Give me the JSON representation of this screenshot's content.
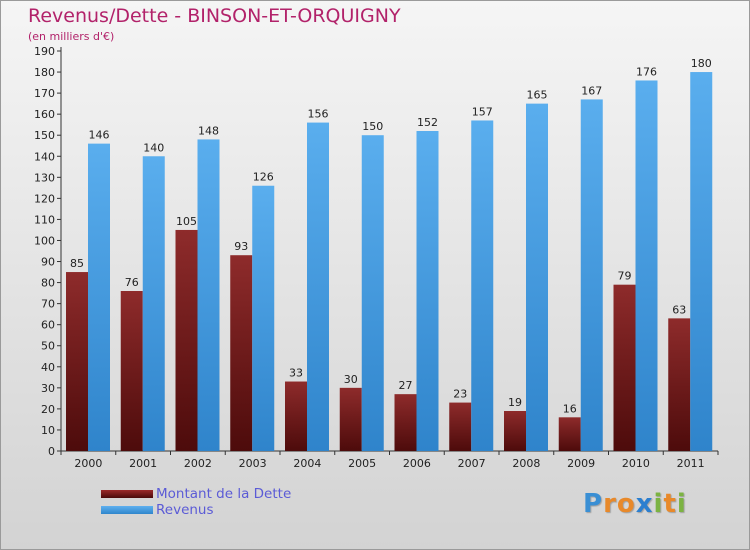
{
  "chart_data": {
    "type": "bar",
    "title": "Revenus/Dette - BINSON-ET-ORQUIGNY",
    "subtitle": "(en milliers d'€)",
    "categories": [
      "2000",
      "2001",
      "2002",
      "2003",
      "2004",
      "2005",
      "2006",
      "2007",
      "2008",
      "2009",
      "2010",
      "2011"
    ],
    "series": [
      {
        "name": "Montant de la Dette",
        "color": "#7a2020",
        "values": [
          85,
          76,
          105,
          93,
          33,
          30,
          27,
          23,
          19,
          16,
          79,
          63
        ]
      },
      {
        "name": "Revenus",
        "color": "#4a9de0",
        "values": [
          146,
          140,
          148,
          126,
          156,
          150,
          152,
          157,
          165,
          167,
          176,
          180
        ]
      }
    ],
    "ylim": [
      0,
      190
    ],
    "ytick_step": 10,
    "xlabel": "",
    "ylabel": "",
    "legend": "bottom-left",
    "grid": false
  },
  "logo": {
    "letters": [
      "P",
      "r",
      "o",
      "x",
      "i",
      "t",
      "i"
    ],
    "colors": [
      "#3a8fd4",
      "#e8892a",
      "#e8892a",
      "#2b7fd0",
      "#7cb342",
      "#e8892a",
      "#7cb342"
    ]
  }
}
